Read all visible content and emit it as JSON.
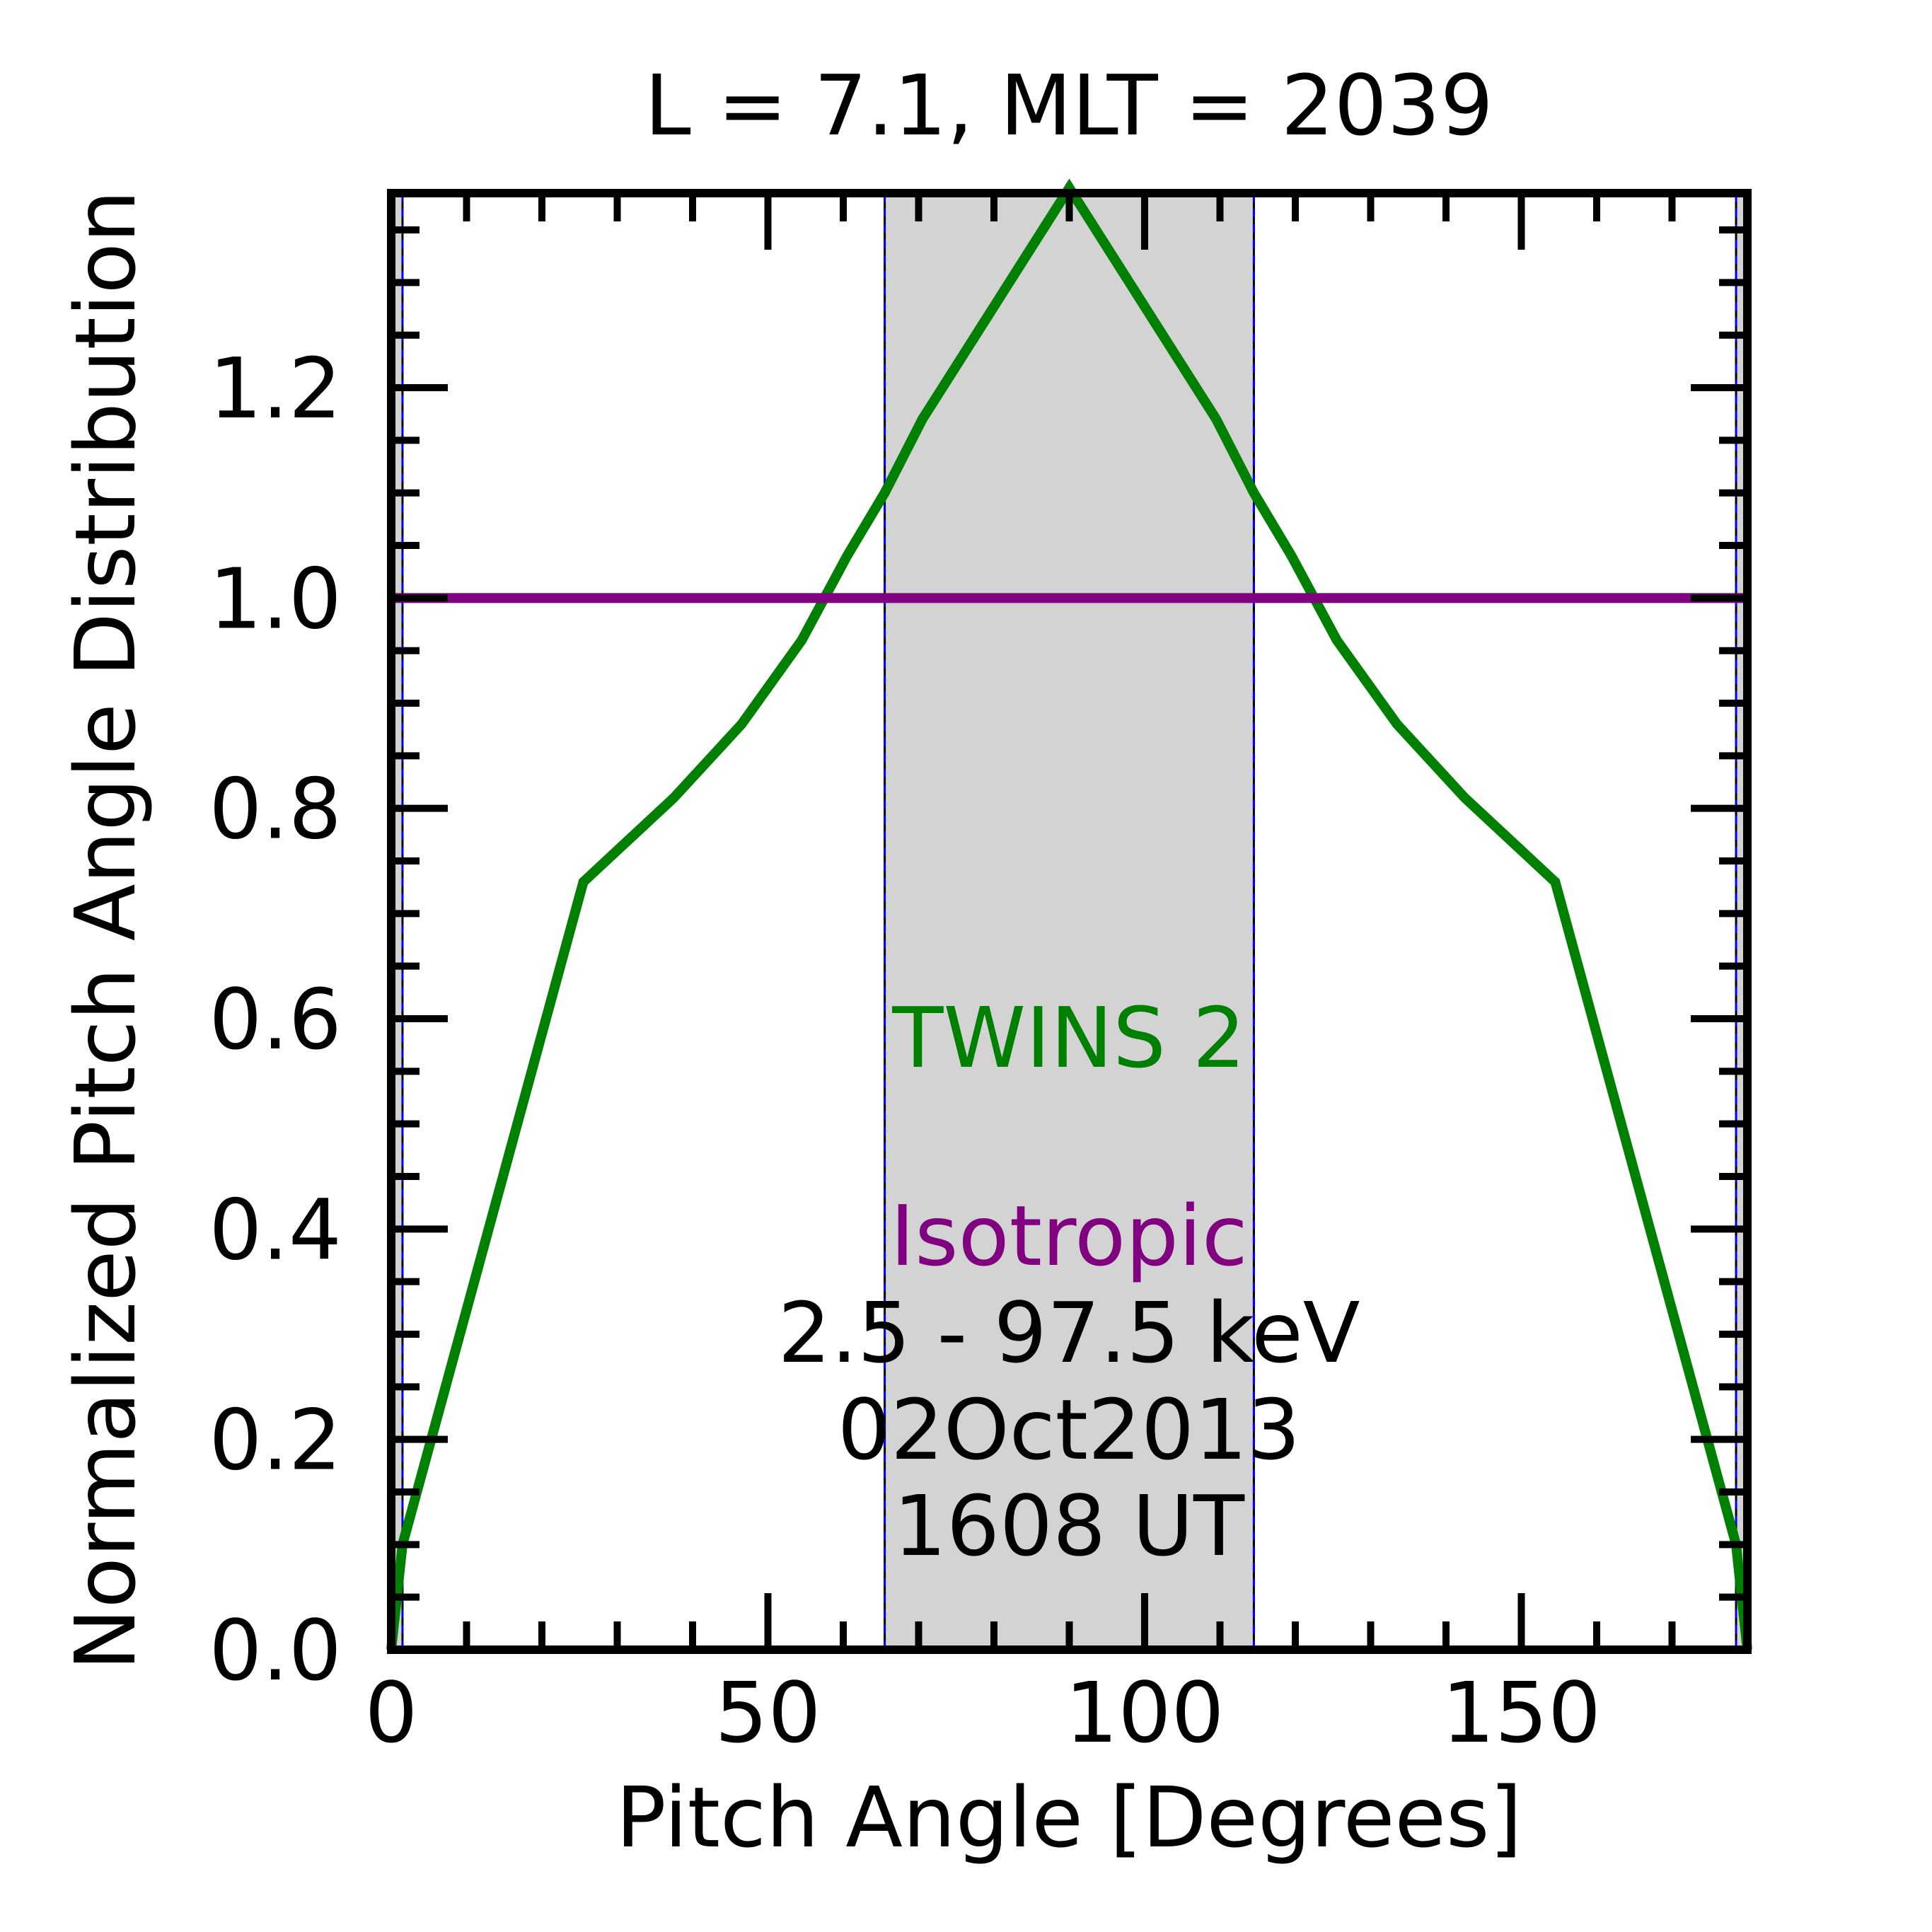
{
  "chart_data": {
    "type": "line",
    "title": "L =  7.1, MLT = 2039",
    "xlabel": "Pitch Angle [Degrees]",
    "ylabel": "Normalized Pitch Angle Distribution",
    "xlim": [
      0,
      180
    ],
    "ylim": [
      0,
      1.385
    ],
    "x_ticks": [
      0,
      50,
      100,
      150
    ],
    "y_ticks": [
      0.0,
      0.2,
      0.4,
      0.6,
      0.8,
      1.0,
      1.2
    ],
    "x_tick_labels": [
      "0",
      "50",
      "100",
      "150"
    ],
    "y_tick_labels": [
      "0.0",
      "0.2",
      "0.4",
      "0.6",
      "0.8",
      "1.0",
      "1.2"
    ],
    "x_minor_step": 10,
    "y_minor_step": 0.05,
    "grid": false,
    "shaded_region": {
      "x": [
        65.5,
        114.5
      ],
      "color": "#d3d3d3"
    },
    "vertical_lines": [
      {
        "x": 1.5,
        "color": "#0000ff"
      },
      {
        "x": 65.5,
        "color": "#0000ff"
      },
      {
        "x": 114.5,
        "color": "#0000ff"
      },
      {
        "x": 178.5,
        "color": "#0000ff"
      }
    ],
    "edge_bands": [
      [
        0,
        1.5
      ],
      [
        178.5,
        180
      ]
    ],
    "series": [
      {
        "name": "TWINS 2",
        "color": "#008000",
        "x": [
          0,
          1.5,
          25.5,
          37.5,
          46.5,
          54.5,
          60.5,
          65.5,
          70.5,
          90,
          109.5,
          114.5,
          119.5,
          125.5,
          133.5,
          142.5,
          154.5,
          178.5,
          180
        ],
        "y": [
          0,
          0.1,
          0.73,
          0.81,
          0.88,
          0.96,
          1.04,
          1.1,
          1.17,
          1.39,
          1.17,
          1.1,
          1.04,
          0.96,
          0.88,
          0.81,
          0.73,
          0.1,
          0
        ]
      },
      {
        "name": "Isotropic",
        "color": "#800080",
        "x": [
          0,
          180
        ],
        "y": [
          1.0,
          1.0
        ]
      }
    ],
    "annotations": [
      {
        "text": "TWINS 2",
        "color": "#008000"
      },
      {
        "text": "Isotropic",
        "color": "#800080"
      },
      {
        "text": "2.5 - 97.5 keV",
        "color": "#000000"
      },
      {
        "text": "02Oct2013",
        "color": "#000000"
      },
      {
        "text": "1608 UT",
        "color": "#000000"
      }
    ]
  }
}
